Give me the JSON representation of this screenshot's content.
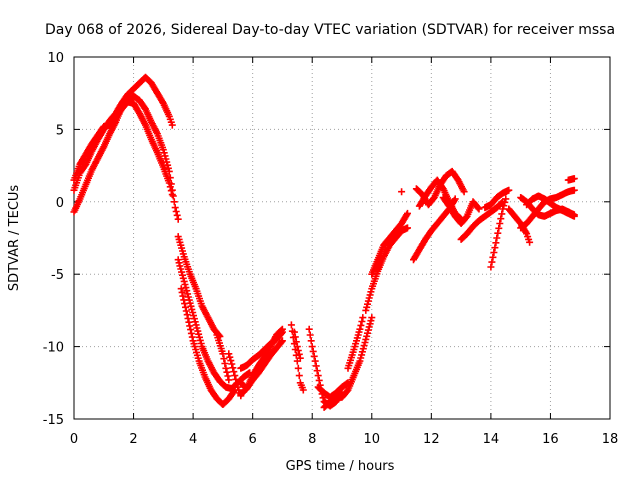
{
  "chart_data": {
    "type": "scatter",
    "title": "Day 068 of 2026, Sidereal Day-to-day VTEC variation (SDTVAR) for receiver mssa",
    "xlabel": "GPS time / hours",
    "ylabel": "SDTVAR / TECUs",
    "xlim": [
      0,
      18
    ],
    "ylim": [
      -15,
      10
    ],
    "xticks": [
      0,
      2,
      4,
      6,
      8,
      10,
      12,
      14,
      16,
      18
    ],
    "yticks": [
      -15,
      -10,
      -5,
      0,
      5,
      10
    ],
    "xtick_labels": [
      "0",
      "2",
      "4",
      "6",
      "8",
      "10",
      "12",
      "14",
      "16",
      "18"
    ],
    "ytick_labels": [
      "-15",
      "-10",
      "-5",
      "0",
      "5",
      "10"
    ],
    "grid": true,
    "marker": "+",
    "series": [
      {
        "name": "SDTVAR",
        "color": "#ff0000",
        "tracks": [
          [
            [
              0,
              0.8
            ],
            [
              0.2,
              2.0
            ],
            [
              0.4,
              2.6
            ],
            [
              0.6,
              3.5
            ],
            [
              0.8,
              4.3
            ],
            [
              1.0,
              5.0
            ],
            [
              1.2,
              5.6
            ],
            [
              1.4,
              6.1
            ],
            [
              1.6,
              6.8
            ],
            [
              1.8,
              7.4
            ],
            [
              2.0,
              7.8
            ],
            [
              2.2,
              8.2
            ],
            [
              2.4,
              8.6
            ],
            [
              2.6,
              8.2
            ],
            [
              2.8,
              7.5
            ],
            [
              3.0,
              6.8
            ],
            [
              3.2,
              5.9
            ],
            [
              3.3,
              5.3
            ]
          ],
          [
            [
              0,
              1.5
            ],
            [
              0.2,
              2.6
            ],
            [
              0.4,
              3.3
            ],
            [
              0.6,
              4.0
            ],
            [
              0.8,
              4.6
            ],
            [
              1.0,
              5.2
            ],
            [
              1.2,
              5.3
            ],
            [
              1.4,
              5.8
            ],
            [
              1.6,
              6.4
            ],
            [
              1.8,
              6.9
            ],
            [
              2.0,
              7.3
            ],
            [
              2.2,
              7.0
            ],
            [
              2.4,
              6.4
            ],
            [
              2.6,
              5.5
            ],
            [
              2.8,
              4.7
            ],
            [
              3.0,
              3.6
            ],
            [
              3.2,
              2.1
            ],
            [
              3.3,
              0.8
            ],
            [
              3.4,
              -0.4
            ],
            [
              3.5,
              -1.2
            ]
          ],
          [
            [
              0,
              -0.7
            ],
            [
              0.2,
              0.2
            ],
            [
              0.4,
              1.2
            ],
            [
              0.6,
              2.2
            ],
            [
              0.8,
              3.0
            ],
            [
              1.0,
              3.8
            ],
            [
              1.2,
              4.7
            ],
            [
              1.4,
              5.5
            ],
            [
              1.6,
              6.5
            ],
            [
              1.8,
              6.9
            ],
            [
              2.0,
              6.8
            ],
            [
              2.2,
              6.1
            ],
            [
              2.4,
              5.3
            ],
            [
              2.6,
              4.3
            ],
            [
              2.8,
              3.4
            ],
            [
              3.0,
              2.4
            ],
            [
              3.2,
              1.3
            ],
            [
              3.3,
              0.5
            ]
          ],
          [
            [
              3.5,
              -2.4
            ],
            [
              3.7,
              -3.8
            ],
            [
              3.9,
              -5.0
            ],
            [
              4.1,
              -6.0
            ],
            [
              4.3,
              -7.2
            ],
            [
              4.5,
              -8.0
            ],
            [
              4.7,
              -8.8
            ],
            [
              4.9,
              -9.3
            ]
          ],
          [
            [
              3.5,
              -4.0
            ],
            [
              3.7,
              -5.5
            ],
            [
              3.9,
              -7.0
            ],
            [
              4.1,
              -8.5
            ],
            [
              4.3,
              -10.0
            ],
            [
              4.5,
              -11.0
            ],
            [
              4.7,
              -11.8
            ],
            [
              4.9,
              -12.4
            ],
            [
              5.1,
              -12.8
            ],
            [
              5.3,
              -12.9
            ],
            [
              5.5,
              -12.5
            ],
            [
              5.7,
              -12.1
            ],
            [
              5.9,
              -11.8
            ]
          ],
          [
            [
              3.6,
              -6.0
            ],
            [
              3.8,
              -7.8
            ],
            [
              4.0,
              -9.6
            ],
            [
              4.2,
              -11.0
            ],
            [
              4.4,
              -12.1
            ],
            [
              4.6,
              -13.0
            ],
            [
              4.8,
              -13.6
            ],
            [
              5.0,
              -14.0
            ],
            [
              5.2,
              -13.6
            ],
            [
              5.4,
              -13.0
            ]
          ],
          [
            [
              4.8,
              -9.2
            ],
            [
              5.0,
              -10.5
            ],
            [
              5.1,
              -11.5
            ],
            [
              5.2,
              -12.3
            ]
          ],
          [
            [
              5.2,
              -10.5
            ],
            [
              5.3,
              -11.2
            ],
            [
              5.4,
              -12.0
            ],
            [
              5.5,
              -12.8
            ],
            [
              5.6,
              -13.4
            ]
          ],
          [
            [
              5.6,
              -12.5
            ],
            [
              5.8,
              -12.9
            ],
            [
              6.0,
              -12.0
            ],
            [
              6.2,
              -11.3
            ],
            [
              6.4,
              -10.7
            ],
            [
              6.6,
              -10.0
            ],
            [
              6.8,
              -9.2
            ],
            [
              7.0,
              -8.8
            ]
          ],
          [
            [
              5.6,
              -11.5
            ],
            [
              5.8,
              -11.3
            ],
            [
              6.0,
              -10.9
            ],
            [
              6.2,
              -10.6
            ],
            [
              6.4,
              -10.2
            ],
            [
              6.6,
              -9.8
            ],
            [
              6.8,
              -9.5
            ],
            [
              7.0,
              -9.0
            ]
          ],
          [
            [
              5.6,
              -13.3
            ],
            [
              5.8,
              -12.9
            ],
            [
              6.0,
              -12.3
            ],
            [
              6.2,
              -11.8
            ],
            [
              6.4,
              -11.2
            ],
            [
              6.6,
              -10.6
            ],
            [
              6.8,
              -10.1
            ],
            [
              7.0,
              -9.6
            ]
          ],
          [
            [
              7.3,
              -8.5
            ],
            [
              7.4,
              -9.8
            ],
            [
              7.5,
              -11.0
            ],
            [
              7.6,
              -12.5
            ],
            [
              7.7,
              -13.0
            ]
          ],
          [
            [
              7.4,
              -9.0
            ],
            [
              7.5,
              -10.0
            ],
            [
              7.6,
              -10.8
            ]
          ],
          [
            [
              7.9,
              -8.8
            ],
            [
              8.0,
              -10.0
            ],
            [
              8.1,
              -11.0
            ],
            [
              8.2,
              -12.0
            ],
            [
              8.3,
              -13.0
            ],
            [
              8.4,
              -13.8
            ],
            [
              8.6,
              -14.1
            ],
            [
              8.8,
              -13.8
            ],
            [
              9.0,
              -13.2
            ]
          ],
          [
            [
              8.2,
              -12.8
            ],
            [
              8.4,
              -13.2
            ],
            [
              8.6,
              -13.5
            ],
            [
              8.8,
              -13.2
            ],
            [
              9.0,
              -12.8
            ],
            [
              9.2,
              -12.5
            ]
          ],
          [
            [
              8.4,
              -14.2
            ],
            [
              8.6,
              -13.8
            ],
            [
              8.8,
              -13.5
            ],
            [
              9.0,
              -13.5
            ],
            [
              9.2,
              -13.0
            ],
            [
              9.4,
              -12.0
            ],
            [
              9.6,
              -11.0
            ],
            [
              9.8,
              -9.5
            ],
            [
              10.0,
              -8.0
            ]
          ],
          [
            [
              9.2,
              -11.5
            ],
            [
              9.4,
              -10.2
            ],
            [
              9.6,
              -8.8
            ],
            [
              9.7,
              -8.0
            ]
          ],
          [
            [
              9.8,
              -7.5
            ],
            [
              10.0,
              -6.0
            ],
            [
              10.2,
              -4.8
            ],
            [
              10.4,
              -3.8
            ],
            [
              10.6,
              -3.0
            ],
            [
              10.8,
              -2.5
            ],
            [
              11.0,
              -2.0
            ],
            [
              11.2,
              -1.8
            ]
          ],
          [
            [
              10.0,
              -5.0
            ],
            [
              10.2,
              -4.0
            ],
            [
              10.4,
              -3.0
            ],
            [
              10.6,
              -2.5
            ],
            [
              10.8,
              -2.0
            ],
            [
              11.0,
              -1.5
            ],
            [
              11.2,
              -0.8
            ]
          ],
          [
            [
              11.0,
              0.7
            ]
          ],
          [
            [
              11.4,
              -4.0
            ],
            [
              11.6,
              -3.3
            ],
            [
              11.8,
              -2.6
            ],
            [
              12.0,
              -2.0
            ],
            [
              12.2,
              -1.5
            ],
            [
              12.4,
              -1.0
            ],
            [
              12.6,
              -0.5
            ],
            [
              12.8,
              0.2
            ]
          ],
          [
            [
              11.5,
              0.9
            ],
            [
              11.7,
              0.5
            ],
            [
              11.9,
              -0.2
            ],
            [
              12.1,
              0.3
            ],
            [
              12.3,
              1.2
            ],
            [
              12.5,
              1.8
            ],
            [
              12.7,
              2.1
            ],
            [
              12.9,
              1.5
            ],
            [
              13.1,
              0.7
            ]
          ],
          [
            [
              11.6,
              -0.3
            ],
            [
              11.8,
              0.4
            ],
            [
              12.0,
              1.0
            ],
            [
              12.2,
              1.5
            ],
            [
              12.4,
              0.9
            ],
            [
              12.6,
              0.0
            ],
            [
              12.8,
              -0.8
            ],
            [
              13.0,
              -1.2
            ]
          ],
          [
            [
              12.4,
              0.3
            ],
            [
              12.6,
              -0.3
            ],
            [
              12.8,
              -1.0
            ],
            [
              13.0,
              -1.5
            ],
            [
              13.2,
              -1.0
            ],
            [
              13.4,
              0.0
            ],
            [
              13.6,
              -0.5
            ]
          ],
          [
            [
              13.0,
              -2.6
            ],
            [
              13.2,
              -2.2
            ],
            [
              13.4,
              -1.7
            ],
            [
              13.6,
              -1.3
            ],
            [
              13.8,
              -1.0
            ],
            [
              14.0,
              -0.7
            ],
            [
              14.2,
              -0.4
            ],
            [
              14.4,
              0.0
            ]
          ],
          [
            [
              13.8,
              -0.4
            ],
            [
              14.0,
              -0.2
            ],
            [
              14.2,
              0.3
            ],
            [
              14.4,
              0.6
            ],
            [
              14.6,
              0.8
            ]
          ],
          [
            [
              14.0,
              -4.5
            ],
            [
              14.1,
              -3.5
            ],
            [
              14.2,
              -2.5
            ],
            [
              14.3,
              -1.5
            ],
            [
              14.4,
              -0.5
            ],
            [
              14.5,
              0.2
            ]
          ],
          [
            [
              14.6,
              -0.5
            ],
            [
              14.8,
              -1.0
            ],
            [
              15.0,
              -1.5
            ],
            [
              15.2,
              -2.2
            ],
            [
              15.3,
              -2.8
            ]
          ],
          [
            [
              15.0,
              -1.8
            ],
            [
              15.2,
              -1.5
            ],
            [
              15.4,
              -1.0
            ],
            [
              15.6,
              -0.5
            ],
            [
              15.8,
              0.0
            ],
            [
              16.0,
              0.2
            ],
            [
              16.2,
              0.3
            ],
            [
              16.4,
              0.5
            ],
            [
              16.6,
              0.7
            ],
            [
              16.8,
              0.8
            ]
          ],
          [
            [
              15.0,
              0.3
            ],
            [
              15.2,
              0.0
            ],
            [
              15.4,
              -0.5
            ],
            [
              15.6,
              -0.9
            ],
            [
              15.8,
              -1.0
            ],
            [
              16.0,
              -0.8
            ],
            [
              16.2,
              -0.6
            ],
            [
              16.4,
              -0.5
            ],
            [
              16.6,
              -0.7
            ],
            [
              16.8,
              -0.9
            ]
          ],
          [
            [
              15.2,
              -0.2
            ],
            [
              15.4,
              0.2
            ],
            [
              15.6,
              0.4
            ],
            [
              15.8,
              0.2
            ],
            [
              16.0,
              -0.1
            ],
            [
              16.2,
              -0.4
            ],
            [
              16.4,
              -0.6
            ],
            [
              16.6,
              -0.8
            ],
            [
              16.8,
              -1.0
            ]
          ],
          [
            [
              16.6,
              1.5
            ],
            [
              16.8,
              1.6
            ]
          ]
        ]
      }
    ]
  }
}
